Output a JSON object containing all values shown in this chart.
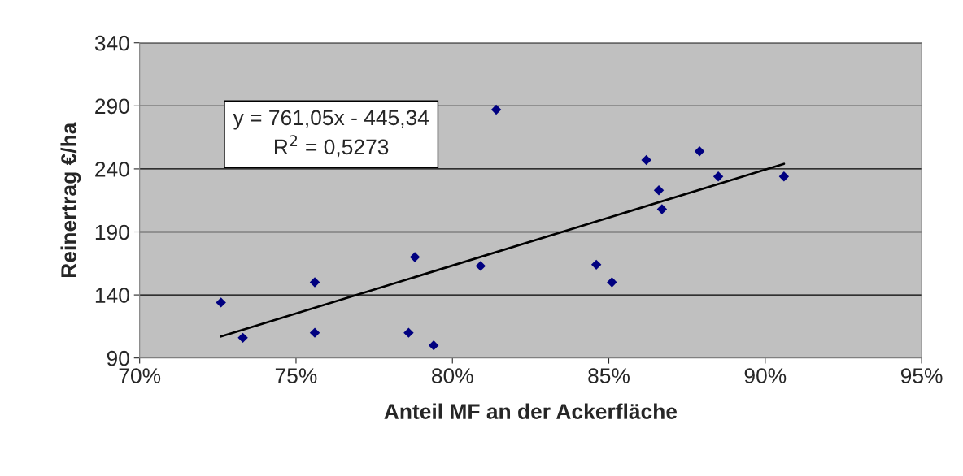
{
  "chart_data": {
    "type": "scatter",
    "xlabel": "Anteil MF an der Ackerfläche",
    "ylabel": "Reinertrag €/ha",
    "xlim": [
      70,
      95
    ],
    "xticks": [
      {
        "value": 70,
        "label": "70%"
      },
      {
        "value": 75,
        "label": "75%"
      },
      {
        "value": 80,
        "label": "80%"
      },
      {
        "value": 85,
        "label": "85%"
      },
      {
        "value": 90,
        "label": "90%"
      },
      {
        "value": 95,
        "label": "95%"
      }
    ],
    "ylim": [
      90,
      340
    ],
    "yticks": [
      90,
      140,
      190,
      240,
      290,
      340
    ],
    "grid": "y",
    "legend": false,
    "series": [
      {
        "marker": "diamond",
        "color": "#000080",
        "x": [
          72.6,
          73.3,
          75.6,
          75.6,
          78.6,
          78.8,
          79.4,
          80.9,
          81.4,
          84.6,
          85.1,
          86.2,
          86.6,
          86.7,
          87.9,
          88.5,
          90.6
        ],
        "values": [
          134,
          106,
          150,
          110,
          110,
          170,
          100,
          163,
          287,
          164,
          150,
          247,
          223,
          208,
          254,
          234,
          234
        ]
      },
      {
        "type": "line",
        "marker": "none",
        "color": "#000000",
        "x": [
          72.6,
          90.6
        ],
        "values": [
          107,
          244
        ]
      }
    ],
    "annotations": [
      "y = 761,05x - 445,34",
      "R$^{2}$ = 0,5273"
    ]
  }
}
